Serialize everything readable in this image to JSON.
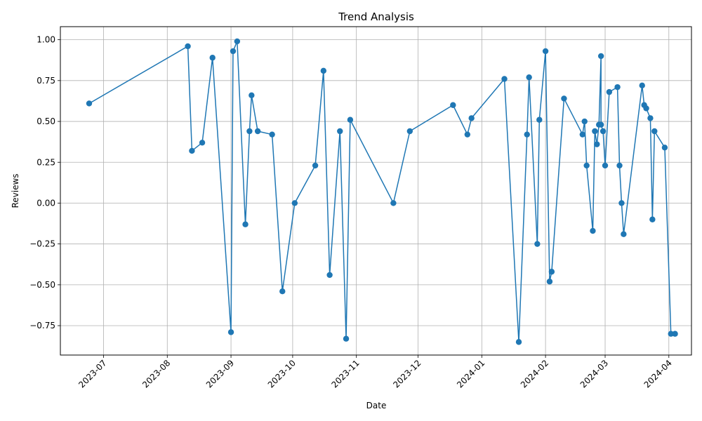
{
  "chart_data": {
    "type": "line",
    "title": "Trend Analysis",
    "xlabel": "Date",
    "ylabel": "Reviews",
    "xlim": [
      "2023-06-10",
      "2024-04-12"
    ],
    "ylim": [
      -0.93,
      1.08
    ],
    "grid": true,
    "marker": "circle",
    "color": "#1f77b4",
    "x_ticks": [
      "2023-07-01",
      "2023-08-01",
      "2023-09-01",
      "2023-10-01",
      "2023-11-01",
      "2023-12-01",
      "2024-01-01",
      "2024-02-01",
      "2024-03-01",
      "2024-04-01"
    ],
    "x_tick_labels": [
      "2023-07",
      "2023-08",
      "2023-09",
      "2023-10",
      "2023-11",
      "2023-12",
      "2024-01",
      "2024-02",
      "2024-03",
      "2024-04"
    ],
    "y_ticks": [
      -0.75,
      -0.5,
      -0.25,
      0.0,
      0.25,
      0.5,
      0.75,
      1.0
    ],
    "y_tick_labels": [
      "−0.75",
      "−0.50",
      "−0.25",
      "0.00",
      "0.25",
      "0.50",
      "0.75",
      "1.00"
    ],
    "series": [
      {
        "x": [
          "2023-06-24",
          "2023-08-11",
          "2023-08-13",
          "2023-08-18",
          "2023-08-23",
          "2023-09-01",
          "2023-09-02",
          "2023-09-04",
          "2023-09-08",
          "2023-09-10",
          "2023-09-11",
          "2023-09-14",
          "2023-09-21",
          "2023-09-26",
          "2023-10-02",
          "2023-10-12",
          "2023-10-16",
          "2023-10-19",
          "2023-10-24",
          "2023-10-27",
          "2023-10-29",
          "2023-11-19",
          "2023-11-27",
          "2023-12-18",
          "2023-12-25",
          "2023-12-27",
          "2024-01-12",
          "2024-01-19",
          "2024-01-23",
          "2024-01-24",
          "2024-01-28",
          "2024-01-29",
          "2024-02-01",
          "2024-02-03",
          "2024-02-04",
          "2024-02-10",
          "2024-02-19",
          "2024-02-20",
          "2024-02-21",
          "2024-02-24",
          "2024-02-25",
          "2024-02-26",
          "2024-02-27",
          "2024-02-28",
          "2024-02-28",
          "2024-02-29",
          "2024-03-01",
          "2024-03-03",
          "2024-03-07",
          "2024-03-08",
          "2024-03-09",
          "2024-03-10",
          "2024-03-19",
          "2024-03-20",
          "2024-03-21",
          "2024-03-23",
          "2024-03-24",
          "2024-03-25",
          "2024-03-30",
          "2024-04-02",
          "2024-04-04"
        ],
        "values": [
          0.61,
          0.96,
          0.32,
          0.37,
          0.89,
          -0.79,
          0.93,
          0.99,
          -0.13,
          0.44,
          0.66,
          0.44,
          0.42,
          -0.54,
          0.0,
          0.23,
          0.81,
          -0.44,
          0.44,
          -0.83,
          0.51,
          0.0,
          0.44,
          0.6,
          0.42,
          0.52,
          0.76,
          -0.85,
          0.42,
          0.77,
          -0.25,
          0.51,
          0.93,
          -0.48,
          -0.42,
          0.64,
          0.42,
          0.5,
          0.23,
          -0.17,
          0.44,
          0.36,
          0.48,
          0.9,
          0.48,
          0.44,
          0.23,
          0.68,
          0.71,
          0.23,
          0.0,
          -0.19,
          0.72,
          0.6,
          0.58,
          0.52,
          -0.1,
          0.44,
          0.34,
          -0.8,
          -0.8
        ]
      }
    ]
  }
}
